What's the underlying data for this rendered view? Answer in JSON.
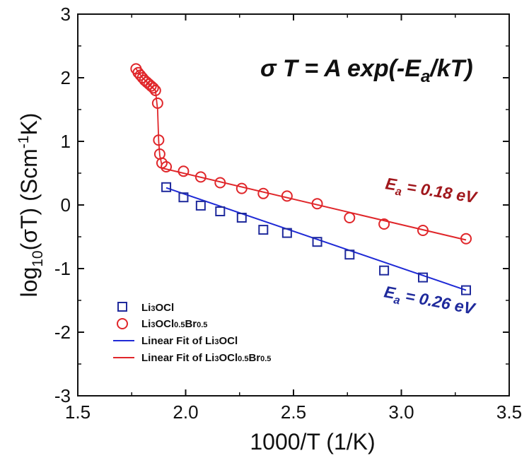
{
  "chart_data": {
    "type": "scatter",
    "title": "",
    "xlabel": "1000/T (1/K)",
    "ylabel_parts": {
      "main": "log",
      "sub": "10",
      "mid": "(σT) (Scm",
      "sup": "-1",
      "end": "K)"
    },
    "xlim": [
      1.5,
      3.5
    ],
    "ylim": [
      -3,
      3
    ],
    "x_ticks": [
      1.5,
      2.0,
      2.5,
      3.0,
      3.5
    ],
    "x_tick_labels": [
      "1.5",
      "2.0",
      "2.5",
      "3.0",
      "3.5"
    ],
    "y_ticks": [
      -3,
      -2,
      -1,
      0,
      1,
      2,
      3
    ],
    "y_tick_labels": [
      "-3",
      "-2",
      "-1",
      "0",
      "1",
      "2",
      "3"
    ],
    "grid": false,
    "legend_position": "bottom-left",
    "legend": [
      {
        "label_main": "Li",
        "label_sub1": "3",
        "label_rest": "OCl",
        "kind": "square",
        "color": "#1f2a9c"
      },
      {
        "label_main": "Li",
        "label_sub1": "3",
        "label_rest": "OCl",
        "label_sub2": "0.5",
        "label_rest2": "Br",
        "label_sub3": "0.5",
        "kind": "circle",
        "color": "#e0262a"
      },
      {
        "label_main": "Linear Fit of Li",
        "label_sub1": "3",
        "label_rest": "OCl",
        "kind": "line",
        "color": "#1f2ad6"
      },
      {
        "label_main": "Linear Fit of Li",
        "label_sub1": "3",
        "label_rest": "OCl",
        "label_sub2": "0.5",
        "label_rest2": "Br",
        "label_sub3": "0.5",
        "kind": "line",
        "color": "#e0262a"
      }
    ],
    "series": [
      {
        "name": "Li3OCl",
        "marker": "square",
        "color": "#1f2a9c",
        "x": [
          1.91,
          1.99,
          2.07,
          2.16,
          2.26,
          2.36,
          2.47,
          2.61,
          2.76,
          2.92,
          3.1,
          3.3
        ],
        "y": [
          0.28,
          0.12,
          -0.01,
          -0.1,
          -0.2,
          -0.39,
          -0.44,
          -0.58,
          -0.78,
          -1.03,
          -1.14,
          -1.34
        ]
      },
      {
        "name": "Li3OCl0.5Br0.5",
        "marker": "circle",
        "color": "#e0262a",
        "x": [
          1.77,
          1.78,
          1.79,
          1.8,
          1.81,
          1.82,
          1.83,
          1.84,
          1.85,
          1.86,
          1.87,
          1.875,
          1.88,
          1.89,
          1.91,
          1.99,
          2.07,
          2.16,
          2.26,
          2.36,
          2.47,
          2.61,
          2.76,
          2.92,
          3.1,
          3.3
        ],
        "y": [
          2.14,
          2.08,
          2.04,
          2.0,
          1.96,
          1.93,
          1.9,
          1.87,
          1.84,
          1.8,
          1.6,
          1.02,
          0.8,
          0.66,
          0.6,
          0.53,
          0.44,
          0.35,
          0.26,
          0.18,
          0.14,
          0.02,
          -0.2,
          -0.3,
          -0.4,
          -0.53
        ]
      }
    ],
    "fit_lines": [
      {
        "name": "Linear Fit of Li3OCl",
        "color": "#1f2ad6",
        "x": [
          1.91,
          3.3
        ],
        "y": [
          0.27,
          -1.34
        ]
      },
      {
        "name": "Linear Fit of Li3OCl0.5Br0.5",
        "color": "#e0262a",
        "x": [
          1.89,
          3.3
        ],
        "y": [
          0.58,
          -0.55
        ]
      }
    ],
    "red_curve": {
      "color": "#e0262a",
      "x": [
        1.77,
        1.8,
        1.83,
        1.86,
        1.87,
        1.875,
        1.88,
        1.89
      ],
      "y": [
        2.14,
        2.0,
        1.9,
        1.8,
        1.5,
        1.0,
        0.78,
        0.62
      ]
    },
    "annotations": {
      "equation": {
        "sigma": "σ",
        "t1": " T = ",
        "a": "A",
        "exp": " exp(-",
        "e": "E",
        "sub": "a",
        "end": "/kT)"
      },
      "ea_red": {
        "e": "E",
        "sub": "a",
        "value": " = 0.18 eV",
        "color": "#a0171c"
      },
      "ea_blue": {
        "e": "E",
        "sub": "a",
        "value": " = 0.26 eV",
        "color": "#1f2a9c"
      }
    }
  }
}
